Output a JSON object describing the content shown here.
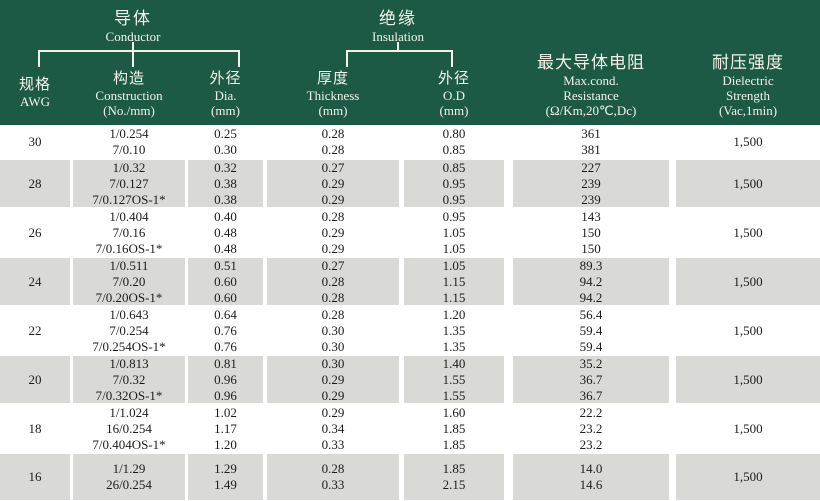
{
  "header": {
    "groups": [
      {
        "cn": "导体",
        "en": "Conductor"
      },
      {
        "cn": "绝缘",
        "en": "Insulation"
      }
    ],
    "columns": [
      {
        "cn": "规格",
        "en": "AWG"
      },
      {
        "cn": "构造",
        "en": "Construction",
        "unit": "(No./mm)"
      },
      {
        "cn": "外径",
        "en": "Dia.",
        "unit": "(mm)"
      },
      {
        "cn": "厚度",
        "en": "Thickness",
        "unit": "(mm)"
      },
      {
        "cn": "外径",
        "en": "O.D",
        "unit": "(mm)"
      },
      {
        "cn": "最大导体电阻",
        "en": "Max.cond.",
        "en2": "Resistance",
        "unit": "(Ω/Km,20℃,Dc)"
      },
      {
        "cn": "耐压强度",
        "en": "Dielectric",
        "en2": "Strength",
        "unit": "(Vac,1min)"
      }
    ]
  },
  "rows": [
    {
      "awg": "30",
      "shaded": false,
      "construction": [
        "1/0.254",
        "7/0.10"
      ],
      "dia": [
        "0.25",
        "0.30"
      ],
      "thickness": [
        "0.28",
        "0.28"
      ],
      "od": [
        "0.80",
        "0.85"
      ],
      "resistance": [
        "361",
        "381"
      ],
      "dielectric": "1,500"
    },
    {
      "awg": "28",
      "shaded": true,
      "construction": [
        "1/0.32",
        "7/0.127",
        "7/0.127OS-1*"
      ],
      "dia": [
        "0.32",
        "0.38",
        "0.38"
      ],
      "thickness": [
        "0.27",
        "0.29",
        "0.29"
      ],
      "od": [
        "0.85",
        "0.95",
        "0.95"
      ],
      "resistance": [
        "227",
        "239",
        "239"
      ],
      "dielectric": "1,500"
    },
    {
      "awg": "26",
      "shaded": false,
      "construction": [
        "1/0.404",
        "7/0.16",
        "7/0.16OS-1*"
      ],
      "dia": [
        "0.40",
        "0.48",
        "0.48"
      ],
      "thickness": [
        "0.28",
        "0.29",
        "0.29"
      ],
      "od": [
        "0.95",
        "1.05",
        "1.05"
      ],
      "resistance": [
        "143",
        "150",
        "150"
      ],
      "dielectric": "1,500"
    },
    {
      "awg": "24",
      "shaded": true,
      "construction": [
        "1/0.511",
        "7/0.20",
        "7/0.20OS-1*"
      ],
      "dia": [
        "0.51",
        "0.60",
        "0.60"
      ],
      "thickness": [
        "0.27",
        "0.28",
        "0.28"
      ],
      "od": [
        "1.05",
        "1.15",
        "1.15"
      ],
      "resistance": [
        "89.3",
        "94.2",
        "94.2"
      ],
      "dielectric": "1,500"
    },
    {
      "awg": "22",
      "shaded": false,
      "construction": [
        "1/0.643",
        "7/0.254",
        "7/0.254OS-1*"
      ],
      "dia": [
        "0.64",
        "0.76",
        "0.76"
      ],
      "thickness": [
        "0.28",
        "0.30",
        "0.30"
      ],
      "od": [
        "1.20",
        "1.35",
        "1.35"
      ],
      "resistance": [
        "56.4",
        "59.4",
        "59.4"
      ],
      "dielectric": "1,500"
    },
    {
      "awg": "20",
      "shaded": true,
      "construction": [
        "1/0.813",
        "7/0.32",
        "7/0.32OS-1*"
      ],
      "dia": [
        "0.81",
        "0.96",
        "0.96"
      ],
      "thickness": [
        "0.30",
        "0.29",
        "0.29"
      ],
      "od": [
        "1.40",
        "1.55",
        "1.55"
      ],
      "resistance": [
        "35.2",
        "36.7",
        "36.7"
      ],
      "dielectric": "1,500"
    },
    {
      "awg": "18",
      "shaded": false,
      "construction": [
        "1/1.024",
        "16/0.254",
        "7/0.404OS-1*"
      ],
      "dia": [
        "1.02",
        "1.17",
        "1.20"
      ],
      "thickness": [
        "0.29",
        "0.34",
        "0.33"
      ],
      "od": [
        "1.60",
        "1.85",
        "1.85"
      ],
      "resistance": [
        "22.2",
        "23.2",
        "23.2"
      ],
      "dielectric": "1,500"
    },
    {
      "awg": "16",
      "shaded": true,
      "construction": [
        "1/1.29",
        "26/0.254"
      ],
      "dia": [
        "1.29",
        "1.49"
      ],
      "thickness": [
        "0.28",
        "0.33"
      ],
      "od": [
        "1.85",
        "2.15"
      ],
      "resistance": [
        "14.0",
        "14.6"
      ],
      "dielectric": "1,500"
    }
  ],
  "colors": {
    "header_bg": "#1d5a46",
    "header_text": "#f4f2e8",
    "shaded_row": "#d9d9d6",
    "body_text": "#1c1c1c"
  }
}
